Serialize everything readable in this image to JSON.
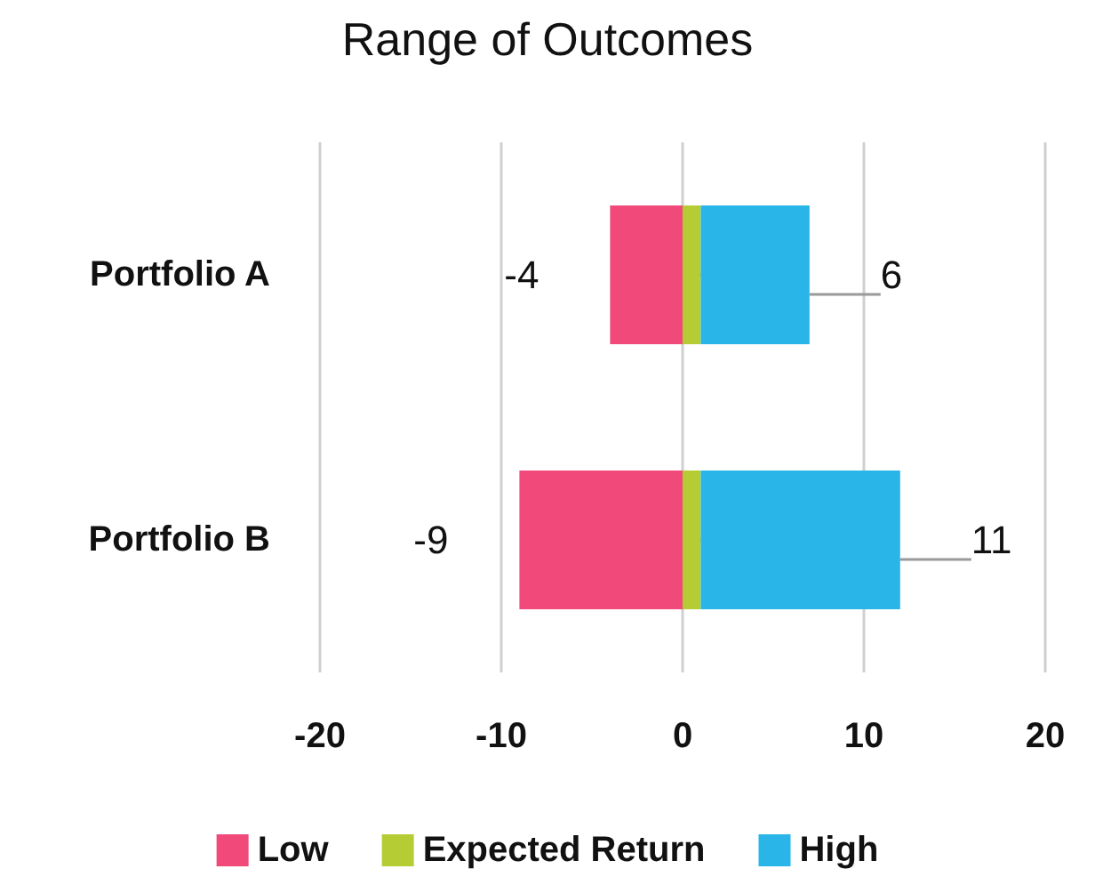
{
  "chart_data": {
    "type": "bar",
    "title": "Range of Outcomes",
    "orientation": "horizontal",
    "stacked": true,
    "categories": [
      "Portfolio A",
      "Portfolio B"
    ],
    "series": [
      {
        "name": "Low",
        "color": "#f0497a",
        "values": [
          -4,
          -9
        ],
        "value_labels": [
          "-4",
          "-9"
        ]
      },
      {
        "name": "Expected Return",
        "color": "#b5cc34",
        "values": [
          1,
          1
        ],
        "value_labels": [
          null,
          null
        ]
      },
      {
        "name": "High",
        "color": "#29b5e8",
        "values": [
          6,
          11
        ],
        "value_labels": [
          "6",
          "11"
        ]
      }
    ],
    "xlim": [
      -20,
      20
    ],
    "xticks": [
      -20,
      -10,
      0,
      10,
      20
    ],
    "grid": "x",
    "legend": "bottom"
  }
}
